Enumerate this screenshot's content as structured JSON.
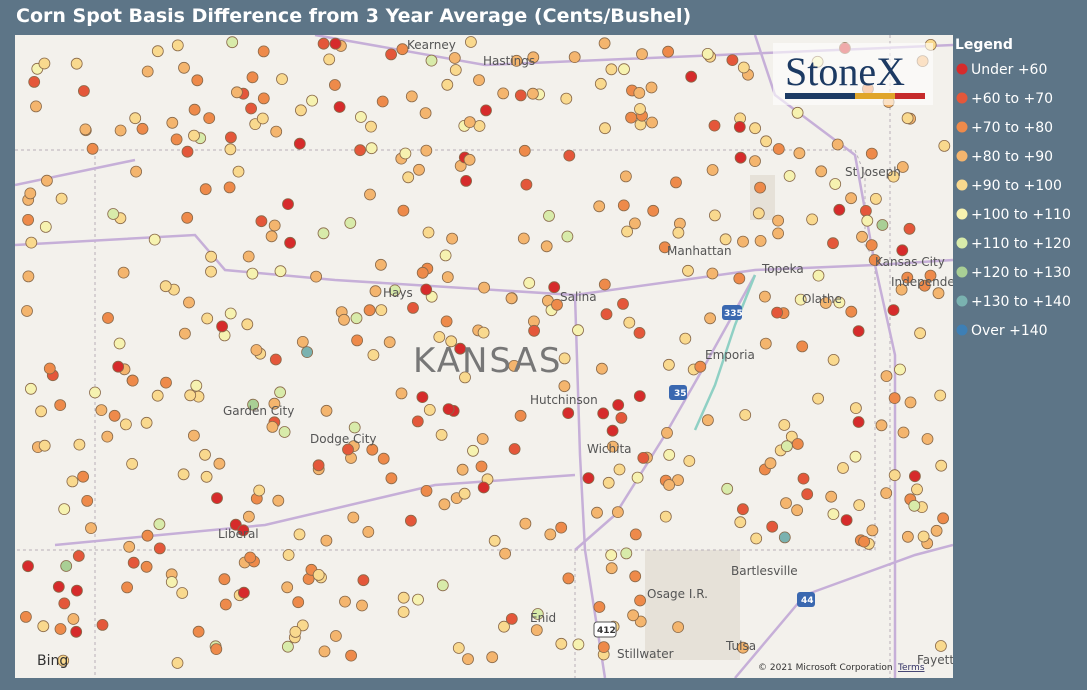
{
  "header": {
    "title": "Corn Spot Basis Difference from 3 Year Average (Cents/Bushel)"
  },
  "logo": "StoneX",
  "legend": {
    "title": "Legend",
    "items": [
      {
        "name": "Under +60",
        "color": "#d62b2b"
      },
      {
        "name": "+60 to +70",
        "color": "#e4573a"
      },
      {
        "name": "+70 to +80",
        "color": "#ee8a4a"
      },
      {
        "name": "+80 to +90",
        "color": "#f4b56e"
      },
      {
        "name": "+90 to +100",
        "color": "#f9d98e"
      },
      {
        "name": "+100 to +110",
        "color": "#f6f2b0"
      },
      {
        "name": "+110 to +120",
        "color": "#d8ebaa"
      },
      {
        "name": "+120 to +130",
        "color": "#a9cf95"
      },
      {
        "name": "+130 to +140",
        "color": "#7ab2b0"
      },
      {
        "name": "Over +140",
        "color": "#3d7fb5"
      }
    ]
  },
  "map": {
    "state_label": "KANSAS",
    "places": [
      "Kearney",
      "Hastings",
      "St Joseph",
      "Manhattan",
      "Topeka",
      "Kansas City",
      "Independence",
      "Olathe",
      "Hays",
      "Salina",
      "Emporia",
      "Garden City",
      "Dodge City",
      "Hutchinson",
      "Wichita",
      "Liberal",
      "Bartlesville",
      "Osage I.R.",
      "Enid",
      "Tulsa",
      "Stillwater",
      "Fayette"
    ],
    "shields": [
      "335",
      "35",
      "44",
      "412"
    ],
    "provider": "Bing",
    "copyright": "© 2021 Microsoft Corporation",
    "terms": "Terms"
  }
}
